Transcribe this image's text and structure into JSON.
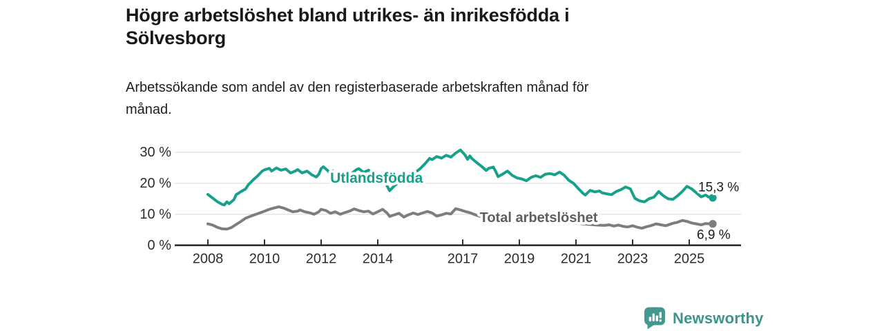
{
  "header": {
    "title_lines": [
      "Högre arbetslöshet bland utrikes- än inrikesfödda i",
      "Sölvesborg"
    ],
    "subtitle_lines": [
      "Arbetssökande som andel av den registerbaserade arbetskraften månad för",
      "månad."
    ]
  },
  "footer": {
    "brand_name": "Newsworthy",
    "brand_text_color": "#3d948c",
    "logo_color": "#44988f"
  },
  "chart_data": {
    "type": "line",
    "title": "Högre arbetslöshet bland utrikes- än inrikesfödda i Sölvesborg",
    "subtitle": "Arbetssökande som andel av den registerbaserade arbetskraften månad för månad.",
    "unit": "%",
    "grid": "horizontal",
    "legend_position": "inline-labels",
    "xlim": [
      2006.8,
      2026.8
    ],
    "ylim": [
      0,
      33
    ],
    "x_ticks": [
      {
        "v": 2008,
        "label": "2008"
      },
      {
        "v": 2010,
        "label": "2010"
      },
      {
        "v": 2012,
        "label": "2012"
      },
      {
        "v": 2014,
        "label": "2014"
      },
      {
        "v": 2017,
        "label": "2017"
      },
      {
        "v": 2019,
        "label": "2019"
      },
      {
        "v": 2021,
        "label": "2021"
      },
      {
        "v": 2023,
        "label": "2023"
      },
      {
        "v": 2025,
        "label": "2025"
      }
    ],
    "y_ticks": [
      {
        "v": 0,
        "label": "0 %"
      },
      {
        "v": 10,
        "label": "10 %"
      },
      {
        "v": 20,
        "label": "20 %"
      },
      {
        "v": 30,
        "label": "30 %"
      }
    ],
    "series": [
      {
        "id": "utlandsfodda",
        "name": "Utlandsfödda",
        "color": "#17a18b",
        "label_color": "#17a18b",
        "end_label": "15,3 %",
        "end_value": 15.3,
        "label_anchor": {
          "year": 2012.32,
          "value": 20.2
        },
        "points": [
          [
            2008.0,
            16.4
          ],
          [
            2008.17,
            15.2
          ],
          [
            2008.33,
            14.1
          ],
          [
            2008.5,
            13.2
          ],
          [
            2008.58,
            13.0
          ],
          [
            2008.67,
            14.0
          ],
          [
            2008.75,
            13.4
          ],
          [
            2008.92,
            14.7
          ],
          [
            2009.0,
            16.3
          ],
          [
            2009.17,
            17.3
          ],
          [
            2009.33,
            18.1
          ],
          [
            2009.42,
            19.4
          ],
          [
            2009.58,
            20.9
          ],
          [
            2009.75,
            22.3
          ],
          [
            2009.92,
            23.9
          ],
          [
            2010.0,
            24.3
          ],
          [
            2010.17,
            24.8
          ],
          [
            2010.25,
            23.9
          ],
          [
            2010.42,
            24.9
          ],
          [
            2010.58,
            24.2
          ],
          [
            2010.75,
            24.6
          ],
          [
            2010.92,
            23.3
          ],
          [
            2011.08,
            23.9
          ],
          [
            2011.17,
            24.4
          ],
          [
            2011.33,
            23.3
          ],
          [
            2011.5,
            23.9
          ],
          [
            2011.67,
            22.7
          ],
          [
            2011.83,
            22.0
          ],
          [
            2011.92,
            22.9
          ],
          [
            2012.0,
            24.7
          ],
          [
            2012.08,
            25.3
          ],
          [
            2012.25,
            23.9
          ],
          [
            2012.33,
            22.9
          ],
          [
            2012.42,
            24.0
          ],
          [
            2012.58,
            21.8
          ],
          [
            2012.67,
            22.9
          ],
          [
            2012.83,
            22.1
          ],
          [
            2012.92,
            22.5
          ],
          [
            2013.08,
            23.2
          ],
          [
            2013.25,
            24.4
          ],
          [
            2013.33,
            24.7
          ],
          [
            2013.5,
            23.5
          ],
          [
            2013.67,
            24.2
          ],
          [
            2013.83,
            23.4
          ],
          [
            2014.0,
            22.7
          ],
          [
            2014.08,
            21.9
          ],
          [
            2014.25,
            20.4
          ],
          [
            2014.42,
            17.6
          ],
          [
            2014.58,
            19.1
          ],
          [
            2014.75,
            20.4
          ],
          [
            2014.92,
            21.6
          ],
          [
            2015.08,
            21.3
          ],
          [
            2015.25,
            22.1
          ],
          [
            2015.33,
            23.5
          ],
          [
            2015.5,
            24.7
          ],
          [
            2015.67,
            26.3
          ],
          [
            2015.83,
            28.0
          ],
          [
            2015.92,
            27.6
          ],
          [
            2016.08,
            28.6
          ],
          [
            2016.25,
            28.1
          ],
          [
            2016.42,
            29.0
          ],
          [
            2016.58,
            28.4
          ],
          [
            2016.75,
            29.7
          ],
          [
            2016.92,
            30.7
          ],
          [
            2017.08,
            29.1
          ],
          [
            2017.17,
            27.7
          ],
          [
            2017.25,
            28.8
          ],
          [
            2017.33,
            27.9
          ],
          [
            2017.5,
            26.6
          ],
          [
            2017.67,
            25.4
          ],
          [
            2017.83,
            24.1
          ],
          [
            2017.92,
            24.8
          ],
          [
            2018.08,
            25.2
          ],
          [
            2018.17,
            23.7
          ],
          [
            2018.25,
            22.1
          ],
          [
            2018.42,
            23.0
          ],
          [
            2018.58,
            23.9
          ],
          [
            2018.75,
            22.5
          ],
          [
            2018.92,
            21.7
          ],
          [
            2019.08,
            21.4
          ],
          [
            2019.25,
            20.8
          ],
          [
            2019.42,
            21.9
          ],
          [
            2019.58,
            22.4
          ],
          [
            2019.75,
            21.9
          ],
          [
            2019.92,
            22.9
          ],
          [
            2020.08,
            23.1
          ],
          [
            2020.25,
            22.7
          ],
          [
            2020.42,
            23.6
          ],
          [
            2020.58,
            22.6
          ],
          [
            2020.75,
            20.9
          ],
          [
            2020.92,
            19.9
          ],
          [
            2021.08,
            18.3
          ],
          [
            2021.25,
            16.7
          ],
          [
            2021.33,
            16.2
          ],
          [
            2021.5,
            17.7
          ],
          [
            2021.67,
            17.2
          ],
          [
            2021.83,
            17.5
          ],
          [
            2021.92,
            16.9
          ],
          [
            2022.08,
            16.6
          ],
          [
            2022.25,
            16.3
          ],
          [
            2022.42,
            17.3
          ],
          [
            2022.58,
            17.9
          ],
          [
            2022.75,
            18.8
          ],
          [
            2022.92,
            18.2
          ],
          [
            2023.08,
            15.1
          ],
          [
            2023.25,
            14.3
          ],
          [
            2023.42,
            14.0
          ],
          [
            2023.58,
            15.0
          ],
          [
            2023.75,
            15.5
          ],
          [
            2023.92,
            17.3
          ],
          [
            2024.08,
            16.0
          ],
          [
            2024.25,
            15.0
          ],
          [
            2024.42,
            14.8
          ],
          [
            2024.58,
            15.9
          ],
          [
            2024.75,
            17.3
          ],
          [
            2024.92,
            19.0
          ],
          [
            2025.08,
            18.2
          ],
          [
            2025.25,
            16.9
          ],
          [
            2025.42,
            15.6
          ],
          [
            2025.58,
            16.2
          ],
          [
            2025.67,
            15.6
          ],
          [
            2025.83,
            15.3
          ]
        ]
      },
      {
        "id": "total",
        "name": "Total arbetslöshet",
        "color": "#7d7d7d",
        "label_color": "#5b5e62",
        "end_label": "6,9 %",
        "end_value": 6.9,
        "label_anchor": {
          "year": 2017.6,
          "value": 7.5
        },
        "points": [
          [
            2008.0,
            6.9
          ],
          [
            2008.17,
            6.5
          ],
          [
            2008.33,
            5.8
          ],
          [
            2008.5,
            5.3
          ],
          [
            2008.67,
            5.2
          ],
          [
            2008.83,
            5.7
          ],
          [
            2009.0,
            6.7
          ],
          [
            2009.17,
            7.7
          ],
          [
            2009.33,
            8.7
          ],
          [
            2009.5,
            9.3
          ],
          [
            2009.67,
            9.9
          ],
          [
            2009.83,
            10.4
          ],
          [
            2010.0,
            11.0
          ],
          [
            2010.17,
            11.6
          ],
          [
            2010.33,
            12.0
          ],
          [
            2010.5,
            12.4
          ],
          [
            2010.67,
            12.0
          ],
          [
            2010.83,
            11.4
          ],
          [
            2011.0,
            10.8
          ],
          [
            2011.17,
            11.0
          ],
          [
            2011.25,
            11.4
          ],
          [
            2011.42,
            10.8
          ],
          [
            2011.58,
            10.5
          ],
          [
            2011.75,
            10.0
          ],
          [
            2011.92,
            10.8
          ],
          [
            2012.0,
            11.6
          ],
          [
            2012.17,
            11.2
          ],
          [
            2012.33,
            10.3
          ],
          [
            2012.5,
            10.8
          ],
          [
            2012.67,
            10.0
          ],
          [
            2012.83,
            10.5
          ],
          [
            2013.0,
            11.0
          ],
          [
            2013.17,
            11.7
          ],
          [
            2013.33,
            11.2
          ],
          [
            2013.5,
            10.8
          ],
          [
            2013.67,
            11.0
          ],
          [
            2013.83,
            10.1
          ],
          [
            2014.0,
            10.8
          ],
          [
            2014.17,
            11.6
          ],
          [
            2014.33,
            10.4
          ],
          [
            2014.42,
            9.3
          ],
          [
            2014.58,
            9.8
          ],
          [
            2014.75,
            10.3
          ],
          [
            2014.92,
            9.1
          ],
          [
            2015.08,
            9.8
          ],
          [
            2015.25,
            10.4
          ],
          [
            2015.42,
            9.9
          ],
          [
            2015.58,
            10.4
          ],
          [
            2015.75,
            10.9
          ],
          [
            2015.92,
            10.4
          ],
          [
            2016.08,
            9.4
          ],
          [
            2016.25,
            9.8
          ],
          [
            2016.42,
            10.3
          ],
          [
            2016.58,
            10.1
          ],
          [
            2016.75,
            11.8
          ],
          [
            2016.92,
            11.4
          ],
          [
            2017.08,
            10.9
          ],
          [
            2017.25,
            10.5
          ],
          [
            2017.42,
            9.9
          ],
          [
            2017.58,
            9.4
          ],
          [
            2017.75,
            8.8
          ],
          [
            2017.92,
            8.5
          ],
          [
            2018.25,
            8.1
          ],
          [
            2018.75,
            7.7
          ],
          [
            2019.25,
            7.4
          ],
          [
            2019.75,
            7.3
          ],
          [
            2020.25,
            7.7
          ],
          [
            2020.75,
            7.3
          ],
          [
            2021.25,
            6.9
          ],
          [
            2021.75,
            6.5
          ],
          [
            2022.0,
            6.4
          ],
          [
            2022.17,
            6.6
          ],
          [
            2022.33,
            6.2
          ],
          [
            2022.5,
            6.5
          ],
          [
            2022.67,
            6.1
          ],
          [
            2022.83,
            5.9
          ],
          [
            2023.0,
            6.3
          ],
          [
            2023.17,
            5.8
          ],
          [
            2023.33,
            5.5
          ],
          [
            2023.5,
            6.0
          ],
          [
            2023.67,
            6.4
          ],
          [
            2023.83,
            6.9
          ],
          [
            2024.0,
            6.6
          ],
          [
            2024.17,
            6.3
          ],
          [
            2024.42,
            7.1
          ],
          [
            2024.58,
            7.4
          ],
          [
            2024.75,
            8.0
          ],
          [
            2024.92,
            7.7
          ],
          [
            2025.08,
            7.2
          ],
          [
            2025.25,
            6.9
          ],
          [
            2025.42,
            6.6
          ],
          [
            2025.58,
            7.0
          ],
          [
            2025.83,
            6.9
          ]
        ]
      }
    ]
  }
}
